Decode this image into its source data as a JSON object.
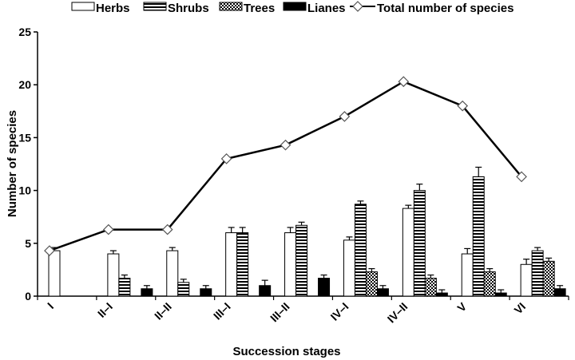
{
  "chart_data": {
    "type": "bar",
    "xlabel": "Succession stages",
    "ylabel": "Number of species",
    "ylim": [
      0,
      25
    ],
    "yticks": [
      "0",
      "5",
      "10",
      "15",
      "20",
      "25"
    ],
    "yticks_values": [
      0,
      5,
      10,
      15,
      20,
      25
    ],
    "categories": [
      "I",
      "II–I",
      "II–II",
      "III–I",
      "III–II",
      "IV–I",
      "IV–II",
      "V",
      "VI"
    ],
    "legend_position": "top",
    "grid": false,
    "series": [
      {
        "name": "Herbs",
        "pattern": "white",
        "values": [
          4.3,
          4.0,
          4.3,
          6.0,
          6.0,
          5.3,
          8.3,
          4.0,
          3.0
        ],
        "errors": [
          0.3,
          0.3,
          0.3,
          0.5,
          0.5,
          0.3,
          0.3,
          0.5,
          0.5
        ]
      },
      {
        "name": "Shrubs",
        "pattern": "horizontal-stripes",
        "values": [
          0,
          1.7,
          1.3,
          6.0,
          6.7,
          8.7,
          10.0,
          11.3,
          4.3
        ],
        "errors": [
          0,
          0.3,
          0.3,
          0.5,
          0.3,
          0.3,
          0.6,
          0.9,
          0.3
        ]
      },
      {
        "name": "Trees",
        "pattern": "checkered",
        "values": [
          0,
          0,
          0,
          0,
          0,
          2.3,
          1.7,
          2.3,
          3.3
        ],
        "errors": [
          0,
          0,
          0,
          0,
          0,
          0.3,
          0.3,
          0.3,
          0.3
        ]
      },
      {
        "name": "Lianes",
        "pattern": "black",
        "values": [
          0,
          0.7,
          0.7,
          1.0,
          1.7,
          0.7,
          0.3,
          0.3,
          0.7
        ],
        "errors": [
          0,
          0.3,
          0.3,
          0.5,
          0.3,
          0.3,
          0.3,
          0.3,
          0.3
        ]
      }
    ],
    "line_series": {
      "name": "Total number of species",
      "marker": "diamond",
      "values": [
        4.3,
        6.3,
        6.3,
        13.0,
        14.3,
        17.0,
        20.3,
        18.0,
        11.3
      ]
    },
    "colors": {
      "bar_stroke": "#000000",
      "line": "#000000",
      "marker_stroke": "#555555"
    }
  }
}
